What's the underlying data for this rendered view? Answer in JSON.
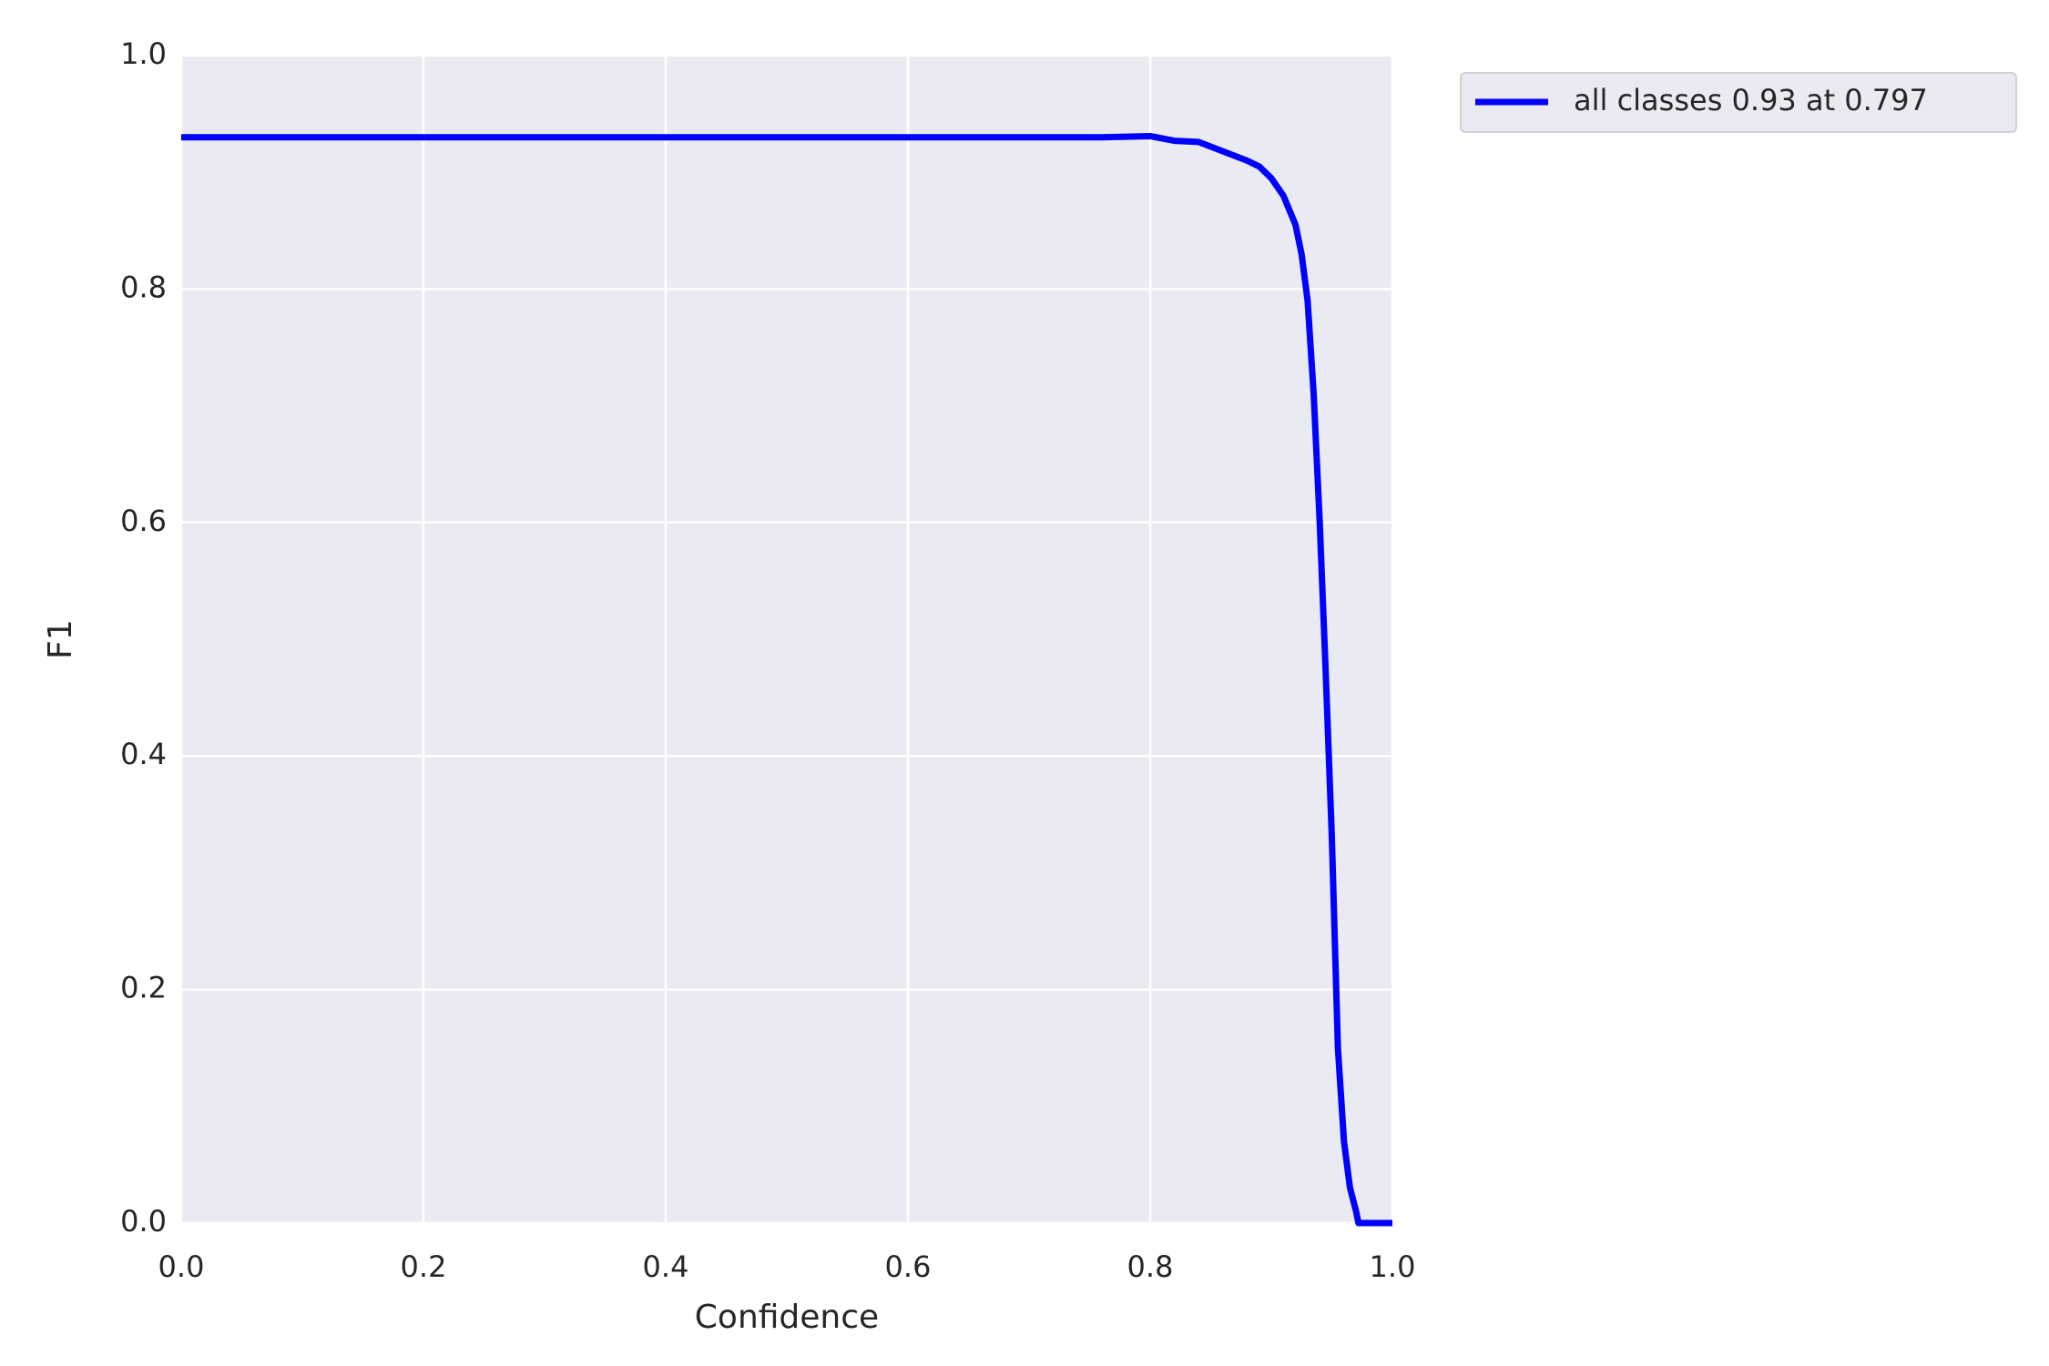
{
  "chart_data": {
    "type": "line",
    "xlabel": "Confidence",
    "ylabel": "F1",
    "x": [
      0,
      0.76,
      0.8,
      0.82,
      0.84,
      0.86,
      0.88,
      0.89,
      0.9,
      0.91,
      0.92,
      0.925,
      0.93,
      0.935,
      0.94,
      0.945,
      0.95,
      0.955,
      0.96,
      0.965,
      0.97,
      0.972,
      1.0
    ],
    "series": [
      {
        "name": "all classes 0.93 at 0.797",
        "color": "#0000ff",
        "values": [
          0.93,
          0.93,
          0.931,
          0.927,
          0.926,
          0.918,
          0.91,
          0.905,
          0.895,
          0.88,
          0.855,
          0.83,
          0.79,
          0.71,
          0.6,
          0.47,
          0.33,
          0.15,
          0.07,
          0.03,
          0.01,
          0.0,
          0.0
        ]
      }
    ],
    "xlim": [
      0,
      1
    ],
    "ylim": [
      0,
      1
    ],
    "xticks": [
      {
        "value": 0,
        "label": "0.0"
      },
      0.2,
      0.4,
      0.6,
      0.8,
      {
        "value": 1,
        "label": "1.0"
      }
    ],
    "yticks": [
      {
        "value": 0,
        "label": "0.0"
      },
      0.2,
      0.4,
      0.6,
      0.8,
      {
        "value": 1,
        "label": "1.0"
      }
    ],
    "grid": true,
    "legend": "outside-upper-right"
  }
}
